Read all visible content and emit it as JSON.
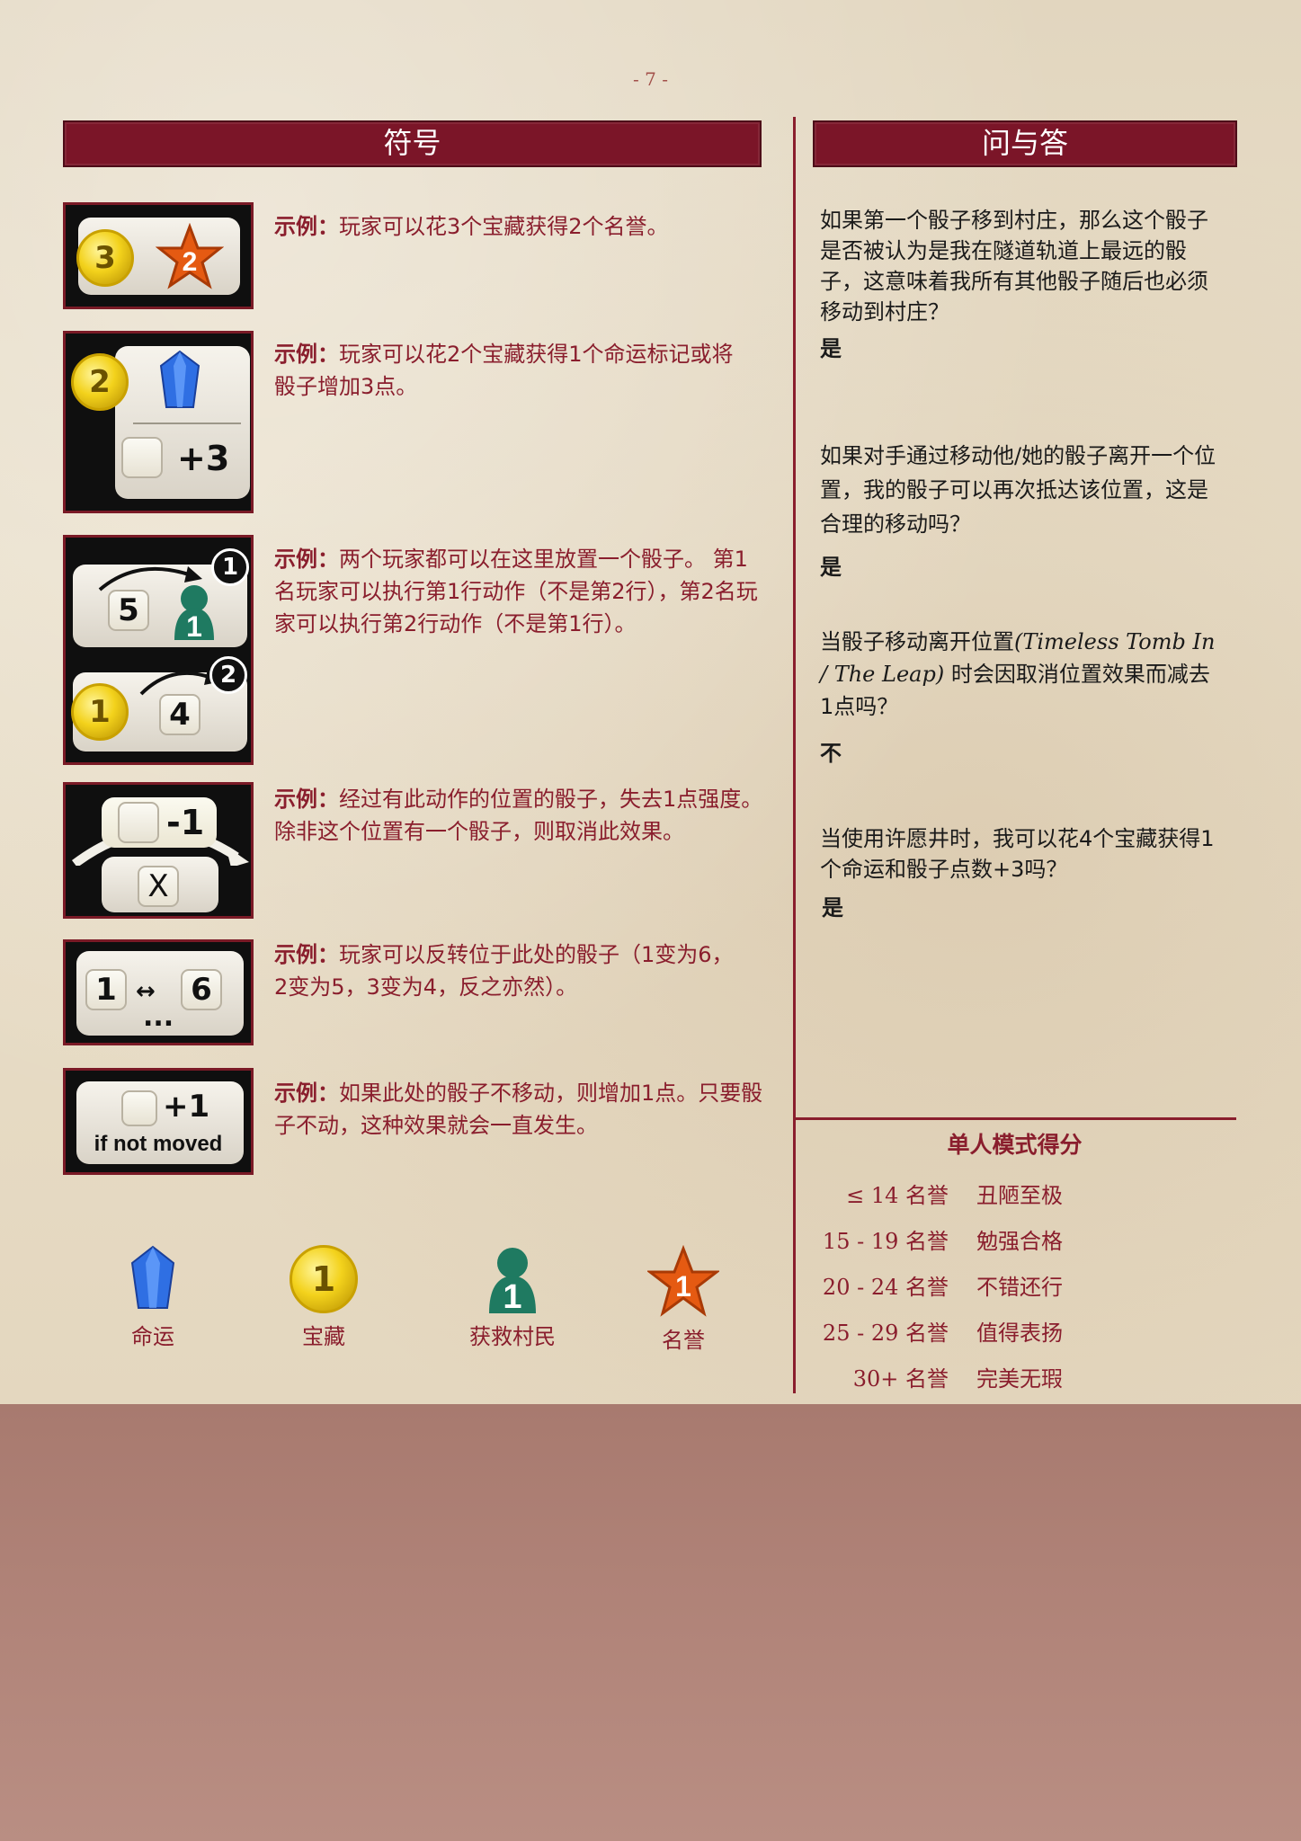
{
  "page_number": "- 7 -",
  "symbols_section": {
    "title": "符号",
    "examples": [
      {
        "label": "示例：",
        "text": "玩家可以花3个宝藏获得2个名誉。"
      },
      {
        "label": "示例：",
        "text": "玩家可以花2个宝藏获得1个命运标记或将骰子增加3点。"
      },
      {
        "label": "示例：",
        "text": "两个玩家都可以在这里放置一个骰子。 第1名玩家可以执行第1行动作（不是第2行），第2名玩家可以执行第2行动作（不是第1行）。"
      },
      {
        "label": "示例：",
        "text": "经过有此动作的位置的骰子，失去1点强度。除非这个位置有一个骰子，则取消此效果。"
      },
      {
        "label": "示例：",
        "text": "玩家可以反转位于此处的骰子（1变为6，2变为5，3变为4，反之亦然）。"
      },
      {
        "label": "示例：",
        "text": "如果此处的骰子不移动，则增加1点。只要骰子不动，这种效果就会一直发生。"
      }
    ],
    "tiles": {
      "t1": {
        "coin": "3",
        "star": "2"
      },
      "t2": {
        "coin": "2",
        "plus": "+3"
      },
      "t3": {
        "die_a": "5",
        "villager": "1",
        "badge_1": "1",
        "coin": "1",
        "die_b": "4",
        "badge_2": "2"
      },
      "t4": {
        "minus": "-1",
        "x": "X"
      },
      "t5": {
        "left": "1",
        "right": "6",
        "dots": "..."
      },
      "t6": {
        "plus": "+1",
        "note": "if not moved"
      }
    }
  },
  "legend": [
    {
      "icon": "fate-crystal-icon",
      "value": "",
      "label": "命运"
    },
    {
      "icon": "treasure-coin-icon",
      "value": "1",
      "label": "宝藏"
    },
    {
      "icon": "villager-icon",
      "value": "1",
      "label": "获救村民"
    },
    {
      "icon": "fame-star-icon",
      "value": "1",
      "label": "名誉"
    }
  ],
  "qa_section": {
    "title": "问与答",
    "items": [
      {
        "q": "如果第一个骰子移到村庄，那么这个骰子是否被认为是我在隧道轨道上最远的骰子，这意味着我所有其他骰子随后也必须移动到村庄？",
        "a": "是"
      },
      {
        "q": "如果对手通过移动他/她的骰子离开一个位置，我的骰子可以再次抵达该位置，这是合理的移动吗？",
        "a": "是"
      },
      {
        "q_before": "当骰子移动离开位置",
        "q_italic": "(Timeless Tomb In / The Leap)",
        "q_after": " 时会因取消位置效果而减去1点吗？",
        "a": "不"
      },
      {
        "q": "当使用许愿井时，我可以花4个宝藏获得1个命运和骰子点数+3吗？",
        "a": "是"
      }
    ]
  },
  "solo_scoring": {
    "title": "单人模式得分",
    "rows": [
      {
        "range": "≤ 14 名誉",
        "rank": "丑陋至极"
      },
      {
        "range": "15 - 19 名誉",
        "rank": "勉强合格"
      },
      {
        "range": "20 - 24 名誉",
        "rank": "不错还行"
      },
      {
        "range": "25 - 29 名誉",
        "rank": "值得表扬"
      },
      {
        "range": "30+ 名誉",
        "rank": "完美无瑕"
      }
    ]
  },
  "colors": {
    "header": "#7b1528",
    "accent_text": "#8a1e2d",
    "bottom_band": "#b08378"
  }
}
